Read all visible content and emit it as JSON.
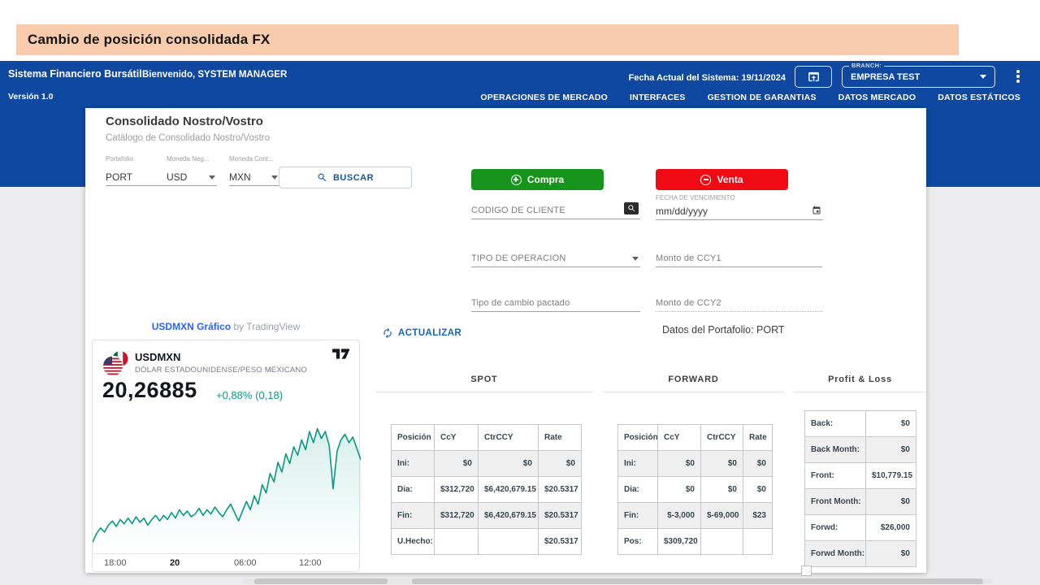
{
  "banner": {
    "title": "Cambio de  posición consolidada FX"
  },
  "header": {
    "app_title": "Sistema Financiero Bursátil",
    "welcome": "Bienvenido, SYSTEM MANAGER",
    "version": "Versión 1.0",
    "system_date": "Fecha Actual del Sistema: 19/11/2024",
    "branch_label": "BRANCH:",
    "branch_value": "EMPRESA TEST",
    "nav": [
      {
        "label": "OPERACIONES DE MERCADO"
      },
      {
        "label": "INTERFACES"
      },
      {
        "label": "GESTION DE GARANTIAS"
      },
      {
        "label": "DATOS MERCADO"
      },
      {
        "label": "DATOS ESTÁTICOS"
      }
    ]
  },
  "panel": {
    "title": "Consolidado Nostro/Vostro",
    "subtitle": "Catálogo de Consolidado Nostro/Vostro",
    "filters": {
      "portfolio_label": "Portafolio",
      "portfolio_value": "PORT",
      "ccy_label": "Moneda Neg...",
      "ccy_value": "USD",
      "ctrccy_label": "Moneda Cont...",
      "ctrccy_value": "MXN",
      "search_label": "BUSCAR"
    },
    "trade_form": {
      "buy_label": "Compra",
      "sell_label": "Venta",
      "client_code_placeholder": "CODIGO DE CLIENTE",
      "maturity_label": "FECHA DE VENCIMIENTO",
      "maturity_value": "mm/dd/yyyy",
      "operation_type_placeholder": "TIPO DE OPERACION",
      "ccy1_amount_placeholder": "Monto de CCY1",
      "agreed_rate_placeholder": "Tipo de cambio pactado",
      "ccy2_amount_placeholder": "Monto de CCY2"
    },
    "refresh_label": "ACTUALIZAR",
    "portfolio_data_label": "Datos del Portafolio: PORT"
  },
  "tradingview": {
    "link_text": "USDMXN Gráfico",
    "attribution": "by TradingView",
    "symbol": "USDMXN",
    "name": "DÓLAR ESTADOUNIDENSE/PESO MEXICANO",
    "price": "20,26885",
    "change": "+0,88% (0,18)",
    "time_labels": [
      "18:00",
      "20",
      "06:00",
      "12:00"
    ],
    "sparkline": [
      93,
      87,
      83,
      86,
      81,
      78,
      82,
      77,
      80,
      76,
      80,
      75,
      79,
      76,
      81,
      77,
      74,
      78,
      74,
      77,
      72,
      76,
      70,
      74,
      71,
      75,
      73,
      69,
      74,
      70,
      73,
      68,
      72,
      75,
      70,
      66,
      72,
      78,
      71,
      64,
      70,
      60,
      66,
      52,
      58,
      44,
      50,
      36,
      43,
      30,
      37,
      25,
      31,
      20,
      27,
      14,
      22,
      12,
      19,
      14,
      24,
      55,
      28,
      20,
      16,
      22,
      18,
      26,
      34
    ]
  },
  "sections": {
    "spot": {
      "title": "SPOT",
      "headers": [
        "Posición",
        "CcY",
        "CtrCCY",
        "Rate"
      ],
      "rows": [
        [
          "Ini:",
          "$0",
          "$0",
          "$0"
        ],
        [
          "Dia:",
          "$312,720",
          "$6,420,679.15",
          "$20.5317"
        ],
        [
          "Fin:",
          "$312,720",
          "$6,420,679.15",
          "$20.5317"
        ],
        [
          "U.Hecho:",
          "",
          "",
          "$20.5317"
        ]
      ]
    },
    "forward": {
      "title": "FORWARD",
      "headers": [
        "Posición",
        "CcY",
        "CtrCCY",
        "Rate"
      ],
      "rows": [
        [
          "Ini:",
          "$0",
          "$0",
          "$0"
        ],
        [
          "Dia:",
          "$0",
          "$0",
          "$0"
        ],
        [
          "Fin:",
          "$-3,000",
          "$-69,000",
          "$23"
        ],
        [
          "Pos:",
          "$309,720",
          "",
          ""
        ]
      ]
    },
    "pnl": {
      "title": "Profit & Loss",
      "rows": [
        [
          "Back:",
          "$0"
        ],
        [
          "Back Month:",
          "$0"
        ],
        [
          "Front:",
          "$10,779.15"
        ],
        [
          "Front Month:",
          "$0"
        ],
        [
          "Forwd:",
          "$26,000"
        ],
        [
          "Forwd Month:",
          "$0"
        ]
      ]
    }
  },
  "colors": {
    "header_blue": "#0e48a1",
    "banner_peach": "#f8cbad",
    "buy_green": "#17941c",
    "sell_red": "#ef0a14",
    "chart_teal": "#089981",
    "link_blue": "#2962ff",
    "action_blue": "#1565c0"
  }
}
